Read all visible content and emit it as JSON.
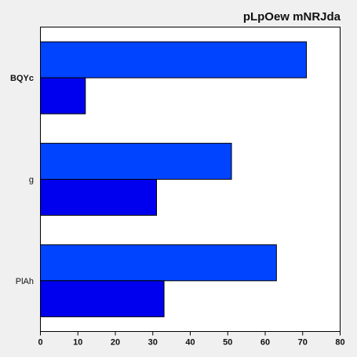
{
  "chart_data": {
    "type": "bar",
    "orientation": "horizontal",
    "title": "pLpOew mNRJda",
    "xlabel": "",
    "ylabel": "",
    "categories": [
      "BQYc",
      "g",
      "PlAh"
    ],
    "series": [
      {
        "color": "#0044ff",
        "values": [
          71,
          51,
          63
        ]
      },
      {
        "color": "#0000ee",
        "values": [
          12,
          31,
          33
        ]
      }
    ],
    "xlim": [
      0,
      80
    ],
    "xticks": [
      0,
      10,
      20,
      30,
      40,
      50,
      60,
      70,
      80
    ],
    "grid": false,
    "legend": "none",
    "bold_category": "BQYc"
  }
}
